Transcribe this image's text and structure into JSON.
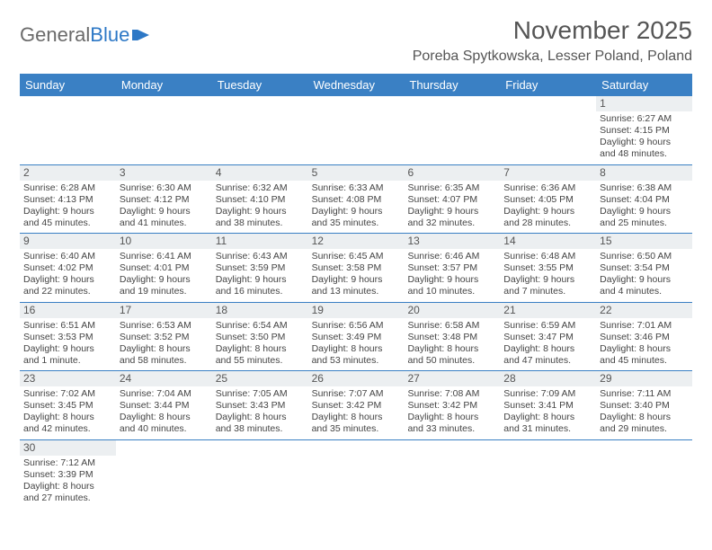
{
  "logo": {
    "text1": "General",
    "text2": "Blue"
  },
  "title": "November 2025",
  "location": "Poreba Spytkowska, Lesser Poland, Poland",
  "colors": {
    "header_bg": "#3a80c4",
    "header_text": "#ffffff",
    "daynum_bg": "#eceff1",
    "border": "#3a80c4",
    "logo_gray": "#6a6a6a",
    "logo_blue": "#2d78c6"
  },
  "day_headers": [
    "Sunday",
    "Monday",
    "Tuesday",
    "Wednesday",
    "Thursday",
    "Friday",
    "Saturday"
  ],
  "weeks": [
    [
      {
        "n": "",
        "sr": "",
        "ss": "",
        "dl": ""
      },
      {
        "n": "",
        "sr": "",
        "ss": "",
        "dl": ""
      },
      {
        "n": "",
        "sr": "",
        "ss": "",
        "dl": ""
      },
      {
        "n": "",
        "sr": "",
        "ss": "",
        "dl": ""
      },
      {
        "n": "",
        "sr": "",
        "ss": "",
        "dl": ""
      },
      {
        "n": "",
        "sr": "",
        "ss": "",
        "dl": ""
      },
      {
        "n": "1",
        "sr": "Sunrise: 6:27 AM",
        "ss": "Sunset: 4:15 PM",
        "dl": "Daylight: 9 hours and 48 minutes."
      }
    ],
    [
      {
        "n": "2",
        "sr": "Sunrise: 6:28 AM",
        "ss": "Sunset: 4:13 PM",
        "dl": "Daylight: 9 hours and 45 minutes."
      },
      {
        "n": "3",
        "sr": "Sunrise: 6:30 AM",
        "ss": "Sunset: 4:12 PM",
        "dl": "Daylight: 9 hours and 41 minutes."
      },
      {
        "n": "4",
        "sr": "Sunrise: 6:32 AM",
        "ss": "Sunset: 4:10 PM",
        "dl": "Daylight: 9 hours and 38 minutes."
      },
      {
        "n": "5",
        "sr": "Sunrise: 6:33 AM",
        "ss": "Sunset: 4:08 PM",
        "dl": "Daylight: 9 hours and 35 minutes."
      },
      {
        "n": "6",
        "sr": "Sunrise: 6:35 AM",
        "ss": "Sunset: 4:07 PM",
        "dl": "Daylight: 9 hours and 32 minutes."
      },
      {
        "n": "7",
        "sr": "Sunrise: 6:36 AM",
        "ss": "Sunset: 4:05 PM",
        "dl": "Daylight: 9 hours and 28 minutes."
      },
      {
        "n": "8",
        "sr": "Sunrise: 6:38 AM",
        "ss": "Sunset: 4:04 PM",
        "dl": "Daylight: 9 hours and 25 minutes."
      }
    ],
    [
      {
        "n": "9",
        "sr": "Sunrise: 6:40 AM",
        "ss": "Sunset: 4:02 PM",
        "dl": "Daylight: 9 hours and 22 minutes."
      },
      {
        "n": "10",
        "sr": "Sunrise: 6:41 AM",
        "ss": "Sunset: 4:01 PM",
        "dl": "Daylight: 9 hours and 19 minutes."
      },
      {
        "n": "11",
        "sr": "Sunrise: 6:43 AM",
        "ss": "Sunset: 3:59 PM",
        "dl": "Daylight: 9 hours and 16 minutes."
      },
      {
        "n": "12",
        "sr": "Sunrise: 6:45 AM",
        "ss": "Sunset: 3:58 PM",
        "dl": "Daylight: 9 hours and 13 minutes."
      },
      {
        "n": "13",
        "sr": "Sunrise: 6:46 AM",
        "ss": "Sunset: 3:57 PM",
        "dl": "Daylight: 9 hours and 10 minutes."
      },
      {
        "n": "14",
        "sr": "Sunrise: 6:48 AM",
        "ss": "Sunset: 3:55 PM",
        "dl": "Daylight: 9 hours and 7 minutes."
      },
      {
        "n": "15",
        "sr": "Sunrise: 6:50 AM",
        "ss": "Sunset: 3:54 PM",
        "dl": "Daylight: 9 hours and 4 minutes."
      }
    ],
    [
      {
        "n": "16",
        "sr": "Sunrise: 6:51 AM",
        "ss": "Sunset: 3:53 PM",
        "dl": "Daylight: 9 hours and 1 minute."
      },
      {
        "n": "17",
        "sr": "Sunrise: 6:53 AM",
        "ss": "Sunset: 3:52 PM",
        "dl": "Daylight: 8 hours and 58 minutes."
      },
      {
        "n": "18",
        "sr": "Sunrise: 6:54 AM",
        "ss": "Sunset: 3:50 PM",
        "dl": "Daylight: 8 hours and 55 minutes."
      },
      {
        "n": "19",
        "sr": "Sunrise: 6:56 AM",
        "ss": "Sunset: 3:49 PM",
        "dl": "Daylight: 8 hours and 53 minutes."
      },
      {
        "n": "20",
        "sr": "Sunrise: 6:58 AM",
        "ss": "Sunset: 3:48 PM",
        "dl": "Daylight: 8 hours and 50 minutes."
      },
      {
        "n": "21",
        "sr": "Sunrise: 6:59 AM",
        "ss": "Sunset: 3:47 PM",
        "dl": "Daylight: 8 hours and 47 minutes."
      },
      {
        "n": "22",
        "sr": "Sunrise: 7:01 AM",
        "ss": "Sunset: 3:46 PM",
        "dl": "Daylight: 8 hours and 45 minutes."
      }
    ],
    [
      {
        "n": "23",
        "sr": "Sunrise: 7:02 AM",
        "ss": "Sunset: 3:45 PM",
        "dl": "Daylight: 8 hours and 42 minutes."
      },
      {
        "n": "24",
        "sr": "Sunrise: 7:04 AM",
        "ss": "Sunset: 3:44 PM",
        "dl": "Daylight: 8 hours and 40 minutes."
      },
      {
        "n": "25",
        "sr": "Sunrise: 7:05 AM",
        "ss": "Sunset: 3:43 PM",
        "dl": "Daylight: 8 hours and 38 minutes."
      },
      {
        "n": "26",
        "sr": "Sunrise: 7:07 AM",
        "ss": "Sunset: 3:42 PM",
        "dl": "Daylight: 8 hours and 35 minutes."
      },
      {
        "n": "27",
        "sr": "Sunrise: 7:08 AM",
        "ss": "Sunset: 3:42 PM",
        "dl": "Daylight: 8 hours and 33 minutes."
      },
      {
        "n": "28",
        "sr": "Sunrise: 7:09 AM",
        "ss": "Sunset: 3:41 PM",
        "dl": "Daylight: 8 hours and 31 minutes."
      },
      {
        "n": "29",
        "sr": "Sunrise: 7:11 AM",
        "ss": "Sunset: 3:40 PM",
        "dl": "Daylight: 8 hours and 29 minutes."
      }
    ],
    [
      {
        "n": "30",
        "sr": "Sunrise: 7:12 AM",
        "ss": "Sunset: 3:39 PM",
        "dl": "Daylight: 8 hours and 27 minutes."
      },
      {
        "n": "",
        "sr": "",
        "ss": "",
        "dl": ""
      },
      {
        "n": "",
        "sr": "",
        "ss": "",
        "dl": ""
      },
      {
        "n": "",
        "sr": "",
        "ss": "",
        "dl": ""
      },
      {
        "n": "",
        "sr": "",
        "ss": "",
        "dl": ""
      },
      {
        "n": "",
        "sr": "",
        "ss": "",
        "dl": ""
      },
      {
        "n": "",
        "sr": "",
        "ss": "",
        "dl": ""
      }
    ]
  ]
}
